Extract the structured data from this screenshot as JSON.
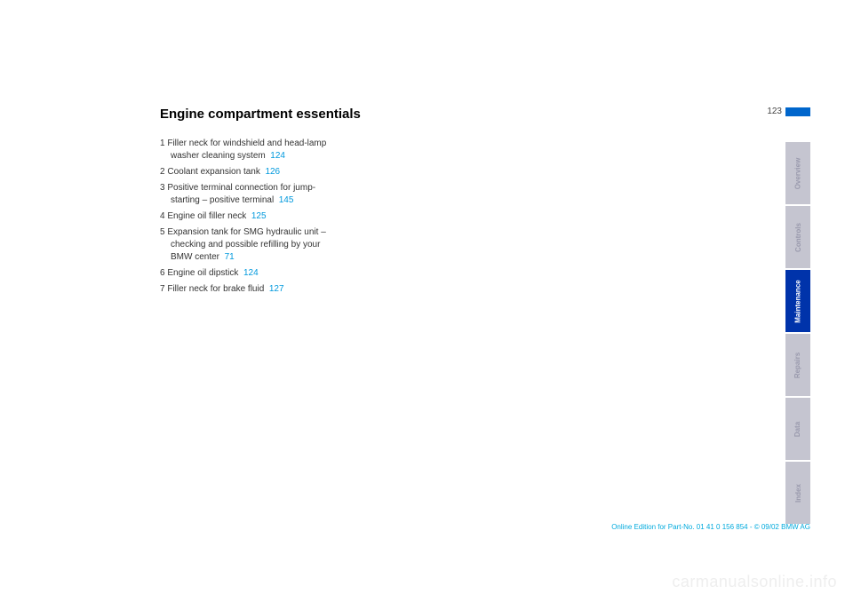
{
  "page_number": "123",
  "heading": "Engine compartment essentials",
  "items": [
    {
      "text": "Filler neck for windshield and head-lamp washer cleaning system",
      "ref": "124"
    },
    {
      "text": "Coolant expansion tank",
      "ref": "126"
    },
    {
      "text": "Positive terminal connection for jump-starting – positive terminal",
      "ref": "145"
    },
    {
      "text": "Engine oil filler neck",
      "ref": "125"
    },
    {
      "text": "Expansion tank for SMG hydraulic unit – checking and possible refilling by your BMW center",
      "ref": "71"
    },
    {
      "text": "Engine oil dipstick",
      "ref": "124"
    },
    {
      "text": "Filler neck for brake fluid",
      "ref": "127"
    }
  ],
  "tabs": [
    {
      "label": "Overview",
      "active": false
    },
    {
      "label": "Controls",
      "active": false
    },
    {
      "label": "Maintenance",
      "active": true
    },
    {
      "label": "Repairs",
      "active": false
    },
    {
      "label": "Data",
      "active": false
    },
    {
      "label": "Index",
      "active": false
    }
  ],
  "footer": "Online Edition for Part-No. 01 41 0 156 854 - © 09/02 BMW AG",
  "watermark": "carmanualsonline.info"
}
